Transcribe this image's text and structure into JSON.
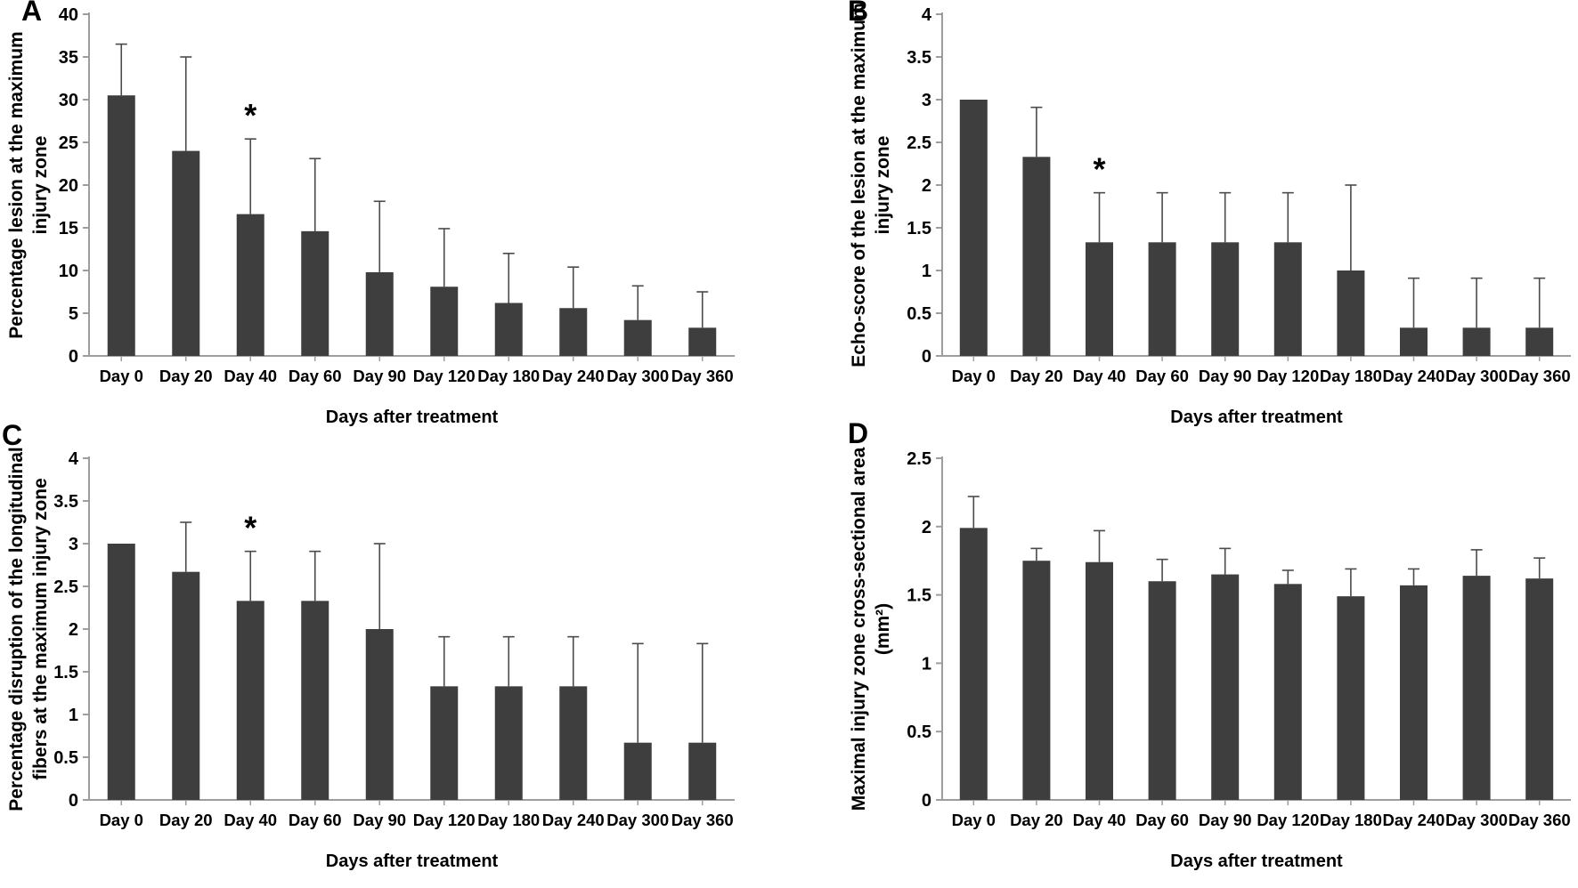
{
  "figure": {
    "background": "#ffffff",
    "bar_color": "#3e3e3e",
    "axis_color": "#9d9d9d",
    "error_bar_color": "#4a4a4a",
    "text_color": "#000000"
  },
  "chart_data": [
    {
      "letter": "A",
      "type": "bar",
      "title": "",
      "ylabel_line1": "Percentage lesion at the maximum",
      "ylabel_line2": "injury zone",
      "xlabel": "Days after treatment",
      "categories": [
        "Day 0",
        "Day 20",
        "Day 40",
        "Day 60",
        "Day 90",
        "Day 120",
        "Day 180",
        "Day 240",
        "Day 300",
        "Day 360"
      ],
      "values": [
        30.5,
        24,
        16.6,
        14.6,
        9.8,
        8.1,
        6.2,
        5.6,
        4.2,
        3.3
      ],
      "errors_plus": [
        6,
        11,
        8.8,
        8.5,
        8.3,
        6.8,
        5.8,
        4.8,
        4,
        4.2
      ],
      "ylim": [
        0,
        40
      ],
      "ytick_step": 5,
      "grid": false,
      "legend": null,
      "significance": {
        "label": "*",
        "category": "Day 40"
      }
    },
    {
      "letter": "B",
      "type": "bar",
      "title": "",
      "ylabel_line1": "Echo-score of the lesion at the maximum",
      "ylabel_line2": "injury zone",
      "xlabel": "Days after treatment",
      "categories": [
        "Day 0",
        "Day 20",
        "Day 40",
        "Day 60",
        "Day 90",
        "Day 120",
        "Day 180",
        "Day 240",
        "Day 300",
        "Day 360"
      ],
      "values": [
        3,
        2.33,
        1.33,
        1.33,
        1.33,
        1.33,
        1,
        0.33,
        0.33,
        0.33
      ],
      "errors_plus": [
        0,
        0.58,
        0.58,
        0.58,
        0.58,
        0.58,
        1,
        0.58,
        0.58,
        0.58
      ],
      "ylim": [
        0,
        4
      ],
      "ytick_step": 0.5,
      "grid": false,
      "legend": null,
      "significance": {
        "label": "*",
        "category": "Day 40"
      }
    },
    {
      "letter": "C",
      "type": "bar",
      "title": "",
      "ylabel_line1": "Percentage disruption of the longitudinal",
      "ylabel_line2": "fibers at the maximum injury zone",
      "xlabel": "Days after treatment",
      "categories": [
        "Day 0",
        "Day 20",
        "Day 40",
        "Day 60",
        "Day 90",
        "Day 120",
        "Day 180",
        "Day 240",
        "Day 300",
        "Day 360"
      ],
      "values": [
        3,
        2.67,
        2.33,
        2.33,
        2,
        1.33,
        1.33,
        1.33,
        0.67,
        0.67
      ],
      "errors_plus": [
        0,
        0.58,
        0.58,
        0.58,
        1,
        0.58,
        0.58,
        0.58,
        1.16,
        1.16
      ],
      "ylim": [
        0,
        4
      ],
      "ytick_step": 0.5,
      "grid": false,
      "legend": null,
      "significance": {
        "label": "*",
        "category": "Day 40"
      }
    },
    {
      "letter": "D",
      "type": "bar",
      "title": "",
      "ylabel_line1": "Maximal injury zone cross-sectional area",
      "ylabel_line2": "(mm²)",
      "xlabel": "Days after treatment",
      "categories": [
        "Day 0",
        "Day 20",
        "Day 40",
        "Day 60",
        "Day 90",
        "Day 120",
        "Day 180",
        "Day 240",
        "Day 300",
        "Day 360"
      ],
      "values": [
        1.99,
        1.75,
        1.74,
        1.6,
        1.65,
        1.58,
        1.49,
        1.57,
        1.64,
        1.62
      ],
      "errors_plus": [
        0.23,
        0.09,
        0.23,
        0.16,
        0.19,
        0.1,
        0.2,
        0.12,
        0.19,
        0.15
      ],
      "ylim": [
        0,
        2.5
      ],
      "ytick_step": 0.5,
      "grid": false,
      "legend": null,
      "significance": null
    }
  ]
}
